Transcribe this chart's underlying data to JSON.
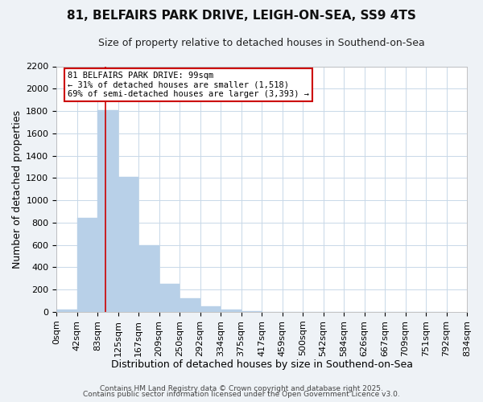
{
  "title": "81, BELFAIRS PARK DRIVE, LEIGH-ON-SEA, SS9 4TS",
  "subtitle": "Size of property relative to detached houses in Southend-on-Sea",
  "xlabel": "Distribution of detached houses by size in Southend-on-Sea",
  "ylabel": "Number of detached properties",
  "bar_values": [
    20,
    840,
    1810,
    1210,
    600,
    255,
    125,
    50,
    25,
    5,
    2,
    0,
    0,
    0,
    0,
    0,
    0,
    0,
    0
  ],
  "bin_labels": [
    "0sqm",
    "42sqm",
    "83sqm",
    "125sqm",
    "167sqm",
    "209sqm",
    "250sqm",
    "292sqm",
    "334sqm",
    "375sqm",
    "417sqm",
    "459sqm",
    "500sqm",
    "542sqm",
    "584sqm",
    "626sqm",
    "667sqm",
    "709sqm",
    "751sqm",
    "792sqm",
    "834sqm"
  ],
  "bar_color": "#b8d0e8",
  "bar_edge_color": "#b8d0e8",
  "grid_color": "#c8d8e8",
  "vline_color": "#cc0000",
  "vline_x": 2.38,
  "annotation_title": "81 BELFAIRS PARK DRIVE: 99sqm",
  "annotation_line1": "← 31% of detached houses are smaller (1,518)",
  "annotation_line2": "69% of semi-detached houses are larger (3,393) →",
  "annotation_box_color": "#ffffff",
  "annotation_box_edge": "#cc0000",
  "ylim": [
    0,
    2200
  ],
  "yticks": [
    0,
    200,
    400,
    600,
    800,
    1000,
    1200,
    1400,
    1600,
    1800,
    2000,
    2200
  ],
  "footnote1": "Contains HM Land Registry data © Crown copyright and database right 2025.",
  "footnote2": "Contains public sector information licensed under the Open Government Licence v3.0.",
  "bg_color": "#eef2f6",
  "plot_bg_color": "#ffffff",
  "title_fontsize": 11,
  "subtitle_fontsize": 9,
  "xlabel_fontsize": 9,
  "ylabel_fontsize": 9,
  "tick_fontsize": 8,
  "annotation_fontsize": 7.5,
  "footnote_fontsize": 6.5
}
